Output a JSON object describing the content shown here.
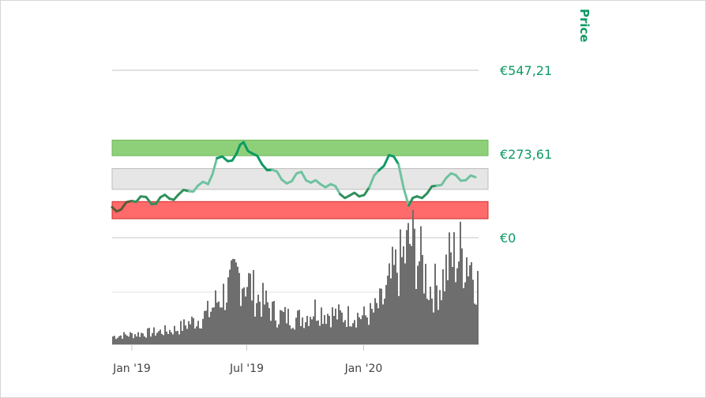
{
  "chart_data": {
    "type": "line",
    "y_axis_title": "Price",
    "price_ticks": [
      {
        "value": 547.21,
        "label": "€547,21"
      },
      {
        "value": 273.61,
        "label": "€273,61"
      },
      {
        "value": 0,
        "label": "€0"
      }
    ],
    "x_ticks": [
      "Jan '19",
      "Jul '19",
      "Jan '20"
    ],
    "ylim": [
      0,
      547.21
    ],
    "bands": [
      {
        "name": "green",
        "from": 268,
        "to": 319,
        "color": "#8ed07a"
      },
      {
        "name": "grey",
        "from": 158,
        "to": 226,
        "color": "#e6e6e6"
      },
      {
        "name": "red",
        "from": 62,
        "to": 118,
        "color": "#ff6b6b"
      }
    ],
    "series": [
      {
        "color": "#0e9a63",
        "x": [
          "2018-12-01",
          "2018-12-15",
          "2019-01-01",
          "2019-01-15",
          "2019-02-01",
          "2019-02-15",
          "2019-03-01",
          "2019-03-15",
          "2019-04-01",
          "2019-04-15",
          "2019-05-01",
          "2019-05-15",
          "2019-06-01",
          "2019-06-15",
          "2019-06-26",
          "2019-07-10",
          "2019-07-25",
          "2019-08-10",
          "2019-08-25",
          "2019-09-10",
          "2019-09-25",
          "2019-10-10",
          "2019-10-25",
          "2019-11-10",
          "2019-11-25",
          "2019-12-10",
          "2019-12-25",
          "2020-01-10",
          "2020-01-25",
          "2020-02-10",
          "2020-02-25",
          "2020-03-12",
          "2020-03-25",
          "2020-04-10",
          "2020-04-25",
          "2020-05-10",
          "2020-05-25",
          "2020-06-10",
          "2020-06-25"
        ],
        "y": [
          100,
          92,
          120,
          135,
          110,
          132,
          128,
          140,
          152,
          170,
          175,
          260,
          250,
          275,
          312,
          275,
          240,
          222,
          190,
          185,
          215,
          180,
          175,
          175,
          142,
          138,
          135,
          165,
          220,
          270,
          240,
          105,
          135,
          145,
          170,
          195,
          205,
          188,
          198
        ]
      }
    ],
    "volume": {
      "color": "#6e6e6e",
      "x": [
        "2018-12-01",
        "2018-12-15",
        "2019-01-01",
        "2019-01-15",
        "2019-02-01",
        "2019-02-15",
        "2019-03-01",
        "2019-03-15",
        "2019-04-01",
        "2019-04-15",
        "2019-05-01",
        "2019-05-15",
        "2019-06-01",
        "2019-06-15",
        "2019-07-01",
        "2019-07-15",
        "2019-08-01",
        "2019-08-15",
        "2019-09-01",
        "2019-09-15",
        "2019-10-01",
        "2019-10-15",
        "2019-11-01",
        "2019-11-15",
        "2019-12-01",
        "2019-12-15",
        "2020-01-01",
        "2020-01-15",
        "2020-02-01",
        "2020-02-15",
        "2020-03-01",
        "2020-03-15",
        "2020-04-01",
        "2020-04-15",
        "2020-05-01",
        "2020-05-15",
        "2020-06-01",
        "2020-06-15",
        "2020-06-28"
      ],
      "values": [
        8,
        9,
        10,
        11,
        12,
        13,
        14,
        16,
        22,
        25,
        32,
        45,
        55,
        70,
        64,
        48,
        40,
        30,
        28,
        26,
        28,
        36,
        32,
        30,
        28,
        30,
        28,
        32,
        45,
        70,
        85,
        105,
        80,
        55,
        62,
        85,
        92,
        88,
        60
      ]
    }
  }
}
